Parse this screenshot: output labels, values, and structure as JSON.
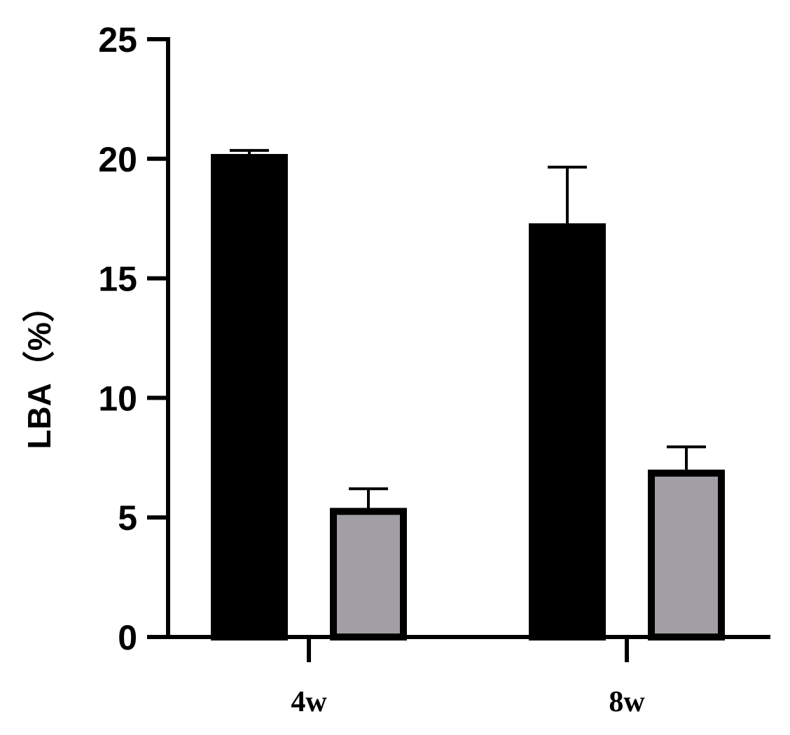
{
  "chart_data": {
    "type": "bar",
    "ylabel": "LBA（%）",
    "xlabel": "",
    "ylim": [
      0,
      25
    ],
    "yticks": [
      0,
      5,
      10,
      15,
      20,
      25
    ],
    "categories": [
      "4w",
      "8w"
    ],
    "grid": false,
    "legend": "none",
    "series": [
      {
        "values": [
          20.2,
          17.3
        ],
        "errors": [
          0.15,
          2.35
        ],
        "color": "#000000"
      },
      {
        "values": [
          5.4,
          7.0
        ],
        "errors": [
          0.8,
          0.95
        ],
        "color": "#a19fa5"
      }
    ]
  }
}
